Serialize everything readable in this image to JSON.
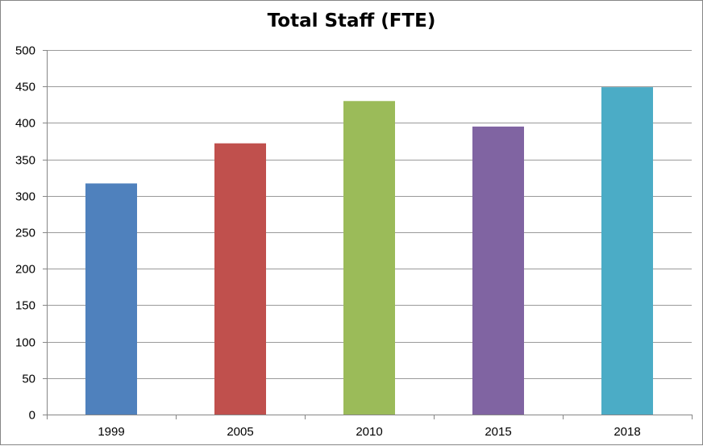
{
  "chart_data": {
    "type": "bar",
    "title": "Total Staff (FTE)",
    "categories": [
      "1999",
      "2005",
      "2010",
      "2015",
      "2018"
    ],
    "values": [
      317,
      372,
      430,
      395,
      449
    ],
    "colors": [
      "#4f81bd",
      "#c0504d",
      "#9bbb59",
      "#8064a2",
      "#4bacc6"
    ],
    "ylim": [
      0,
      500
    ],
    "yticks": [
      0,
      50,
      100,
      150,
      200,
      250,
      300,
      350,
      400,
      450,
      500
    ],
    "grid": true,
    "gridColor": "#9a9a9a",
    "axisColor": "#868686"
  }
}
